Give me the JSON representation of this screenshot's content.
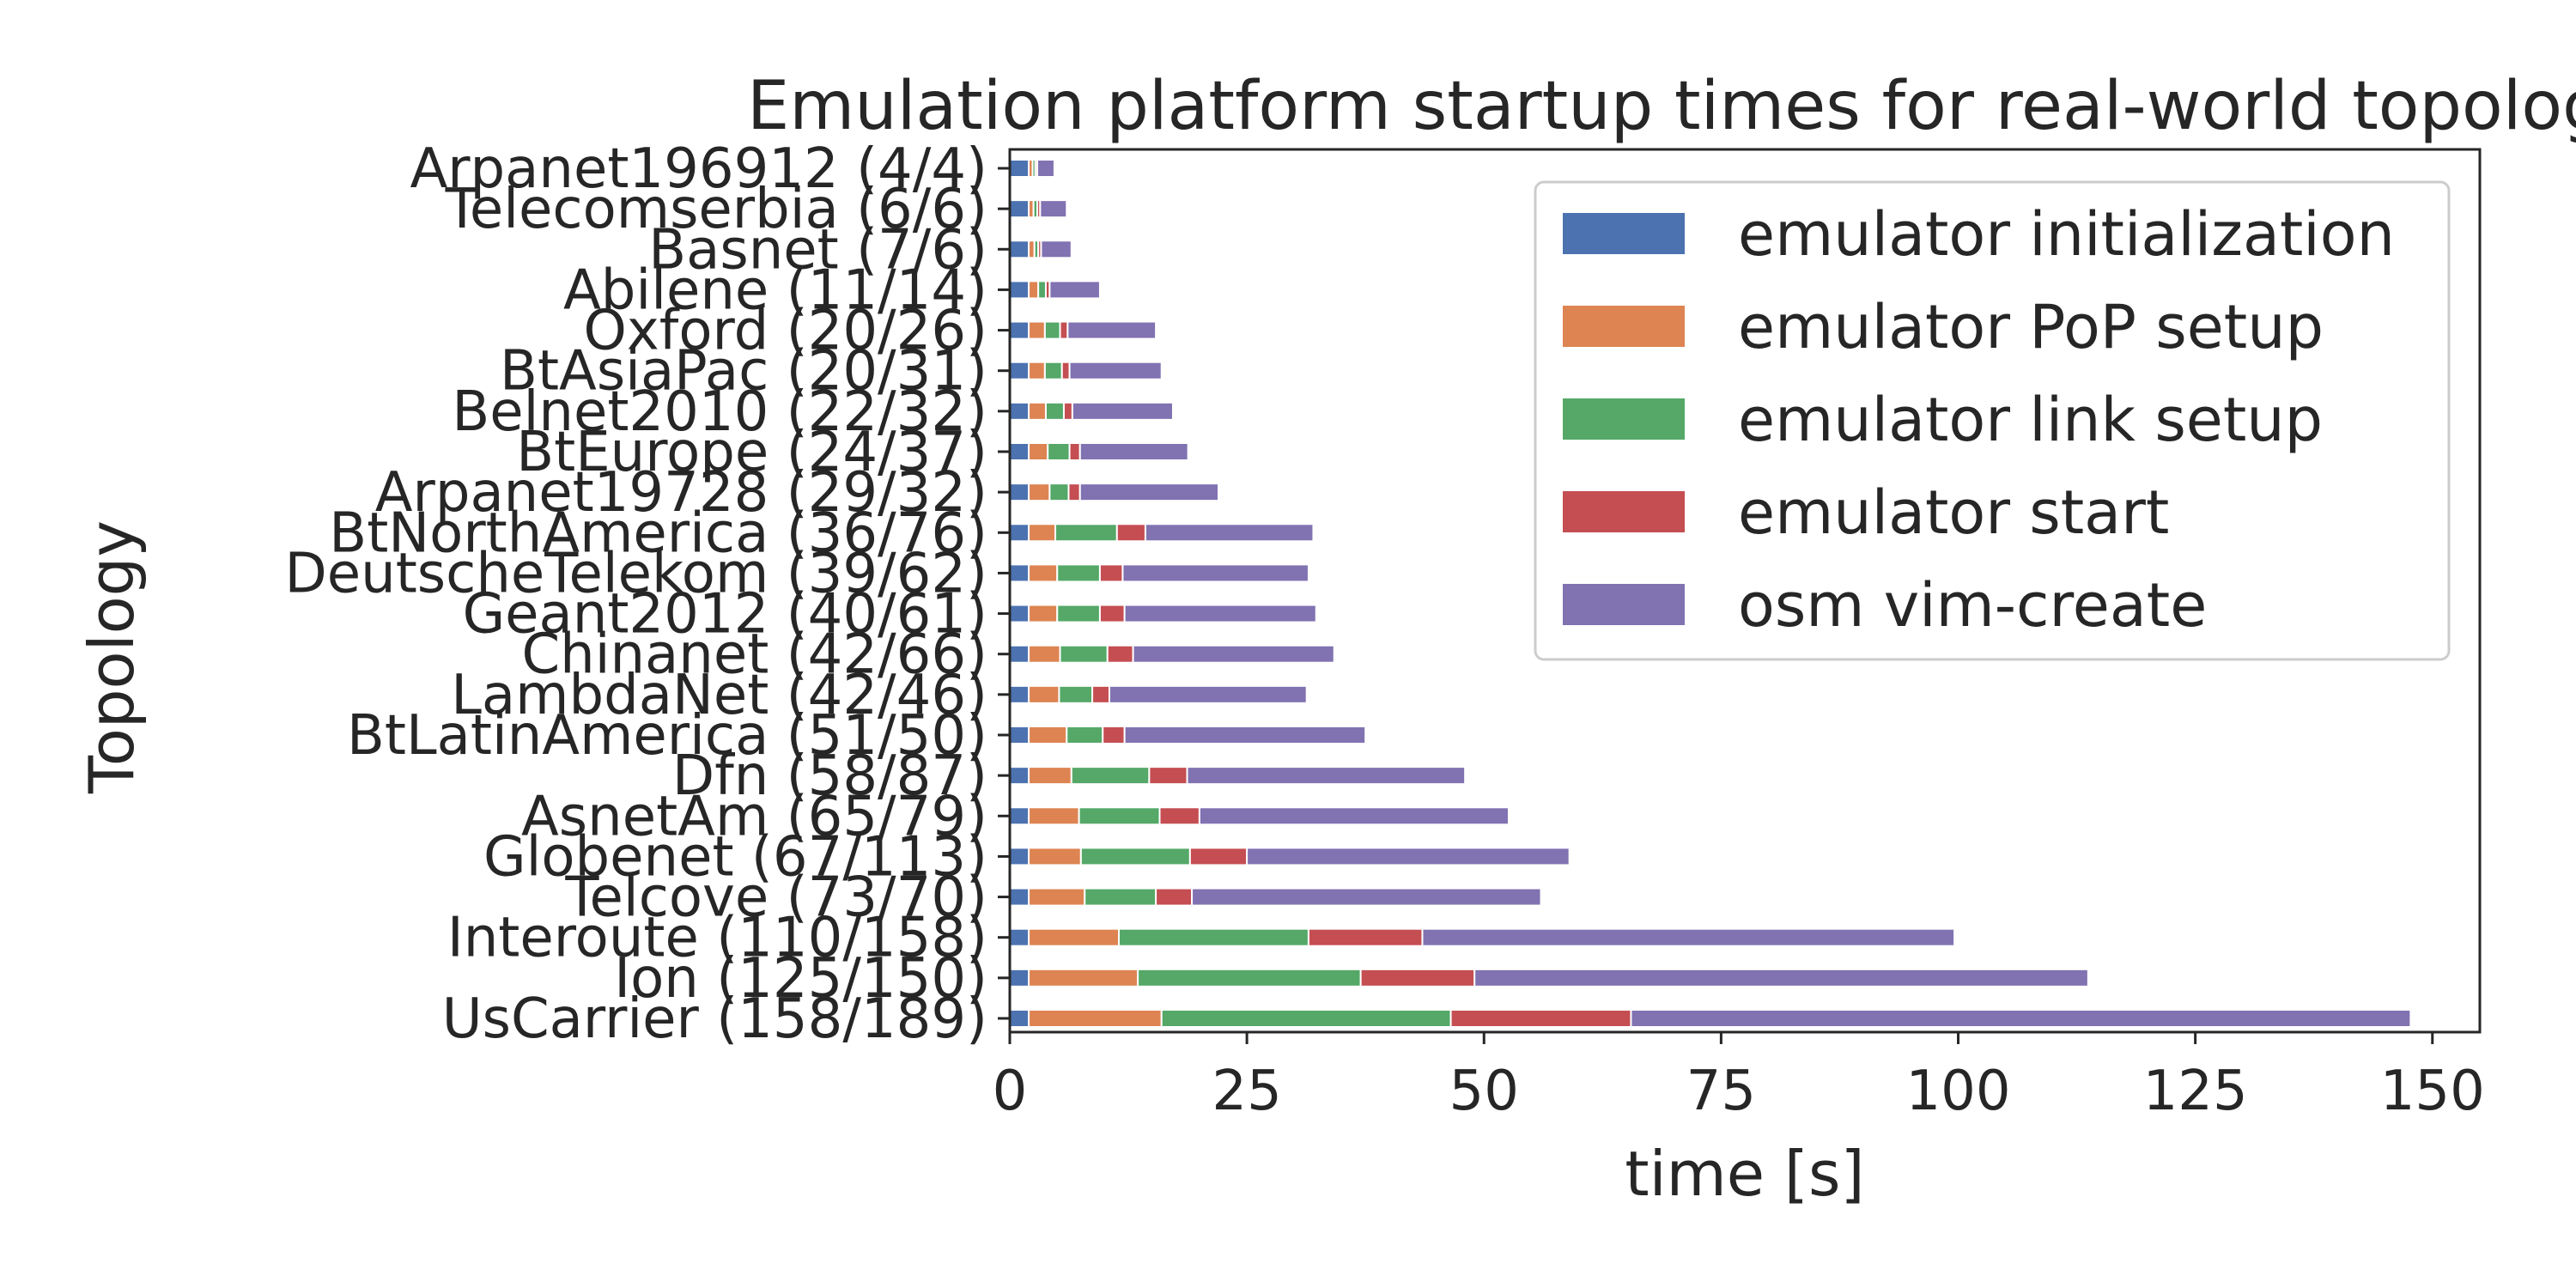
{
  "chart_data": {
    "type": "bar",
    "orientation": "horizontal",
    "stacked": true,
    "title": "Emulation platform startup times for real-world topologies",
    "xlabel": "time [s]",
    "ylabel": "Topology",
    "xlim": [
      0,
      155
    ],
    "xticks": [
      0,
      25,
      50,
      75,
      100,
      125,
      150
    ],
    "grid": false,
    "legend_position": "top-right",
    "categories": [
      "Arpanet196912 (4/4)",
      "Telecomserbia (6/6)",
      "Basnet (7/6)",
      "Abilene (11/14)",
      "Oxford (20/26)",
      "BtAsiaPac (20/31)",
      "Belnet2010 (22/32)",
      "BtEurope (24/37)",
      "Arpanet19728 (29/32)",
      "BtNorthAmerica (36/76)",
      "DeutscheTelekom (39/62)",
      "Geant2012 (40/61)",
      "Chinanet (42/66)",
      "LambdaNet (42/46)",
      "BtLatinAmerica (51/50)",
      "Dfn (58/87)",
      "AsnetAm (65/79)",
      "Globenet (67/113)",
      "Telcove (73/70)",
      "Interoute (110/158)",
      "Ion (125/150)",
      "UsCarrier (158/189)"
    ],
    "series": [
      {
        "name": "emulator initialization",
        "color": "#4c72b0",
        "values": [
          2,
          2,
          2,
          2,
          2,
          2,
          2,
          2,
          2,
          2,
          2,
          2,
          2,
          2,
          2,
          2,
          2,
          2,
          2,
          2,
          2,
          2
        ]
      },
      {
        "name": "emulator PoP setup",
        "color": "#dd8452",
        "values": [
          0.4,
          0.5,
          0.6,
          1,
          1.7,
          1.7,
          1.8,
          2,
          2.2,
          2.8,
          3,
          3,
          3.3,
          3.2,
          4,
          4.5,
          5.3,
          5.5,
          5.9,
          9.5,
          11.5,
          14
        ]
      },
      {
        "name": "emulator link setup",
        "color": "#55a868",
        "values": [
          0.3,
          0.4,
          0.4,
          0.8,
          1.6,
          1.8,
          1.9,
          2.3,
          2,
          6.5,
          4.5,
          4.5,
          5,
          3.5,
          3.8,
          8.2,
          8.5,
          11.5,
          7.5,
          20,
          23.5,
          30.5
        ]
      },
      {
        "name": "emulator start",
        "color": "#c44e52",
        "values": [
          0.2,
          0.3,
          0.3,
          0.4,
          0.8,
          0.8,
          0.9,
          1.1,
          1.2,
          3,
          2.4,
          2.6,
          2.7,
          1.8,
          2.3,
          4,
          4.2,
          6,
          3.8,
          12,
          12,
          19
        ]
      },
      {
        "name": "osm vim-create",
        "color": "#8172b2",
        "values": [
          1.8,
          2.8,
          3.2,
          5.3,
          9.3,
          9.7,
          10.6,
          11.4,
          14.6,
          17.7,
          19.6,
          20.2,
          21.2,
          20.8,
          25.4,
          29.3,
          32.6,
          34,
          36.8,
          56.1,
          64.7,
          82.2
        ]
      }
    ]
  }
}
